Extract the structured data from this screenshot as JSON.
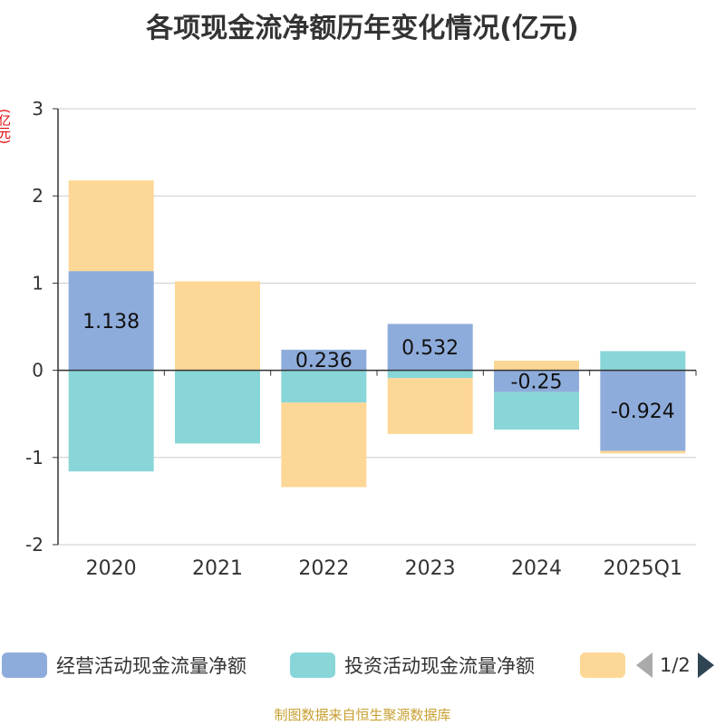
{
  "title": "各项现金流净额历年变化情况(亿元)",
  "unit_label": "(亿元)",
  "source": "制图数据来自恒生聚源数据库",
  "legend": {
    "items": [
      {
        "label": "经营活动现金流量净额",
        "color": "#8eacdb"
      },
      {
        "label": "投资活动现金流量净额",
        "color": "#88d6d8"
      },
      {
        "label": "",
        "color": "#fdd796"
      }
    ],
    "page_text": "1/2"
  },
  "chart_data": {
    "type": "bar",
    "stacked": true,
    "categories": [
      "2020",
      "2021",
      "2022",
      "2023",
      "2024",
      "2025Q1"
    ],
    "ylim": [
      -2,
      3
    ],
    "yticks": [
      -2,
      -1,
      0,
      1,
      2,
      3
    ],
    "grid": true,
    "series": [
      {
        "name": "经营活动现金流量净额",
        "color": "#8eacdb",
        "values": [
          1.138,
          0.0,
          0.236,
          0.532,
          -0.25,
          -0.924
        ],
        "labels": [
          "1.138",
          "",
          "0.236",
          "0.532",
          "-0.25",
          "-0.924"
        ]
      },
      {
        "name": "投资活动现金流量净额",
        "color": "#88d6d8",
        "values": [
          -1.16,
          -0.84,
          -0.37,
          -0.09,
          -0.43,
          0.22
        ],
        "labels": []
      },
      {
        "name": "",
        "color": "#fdd796",
        "values": [
          1.04,
          1.02,
          -0.97,
          -0.64,
          0.11,
          -0.03
        ],
        "labels": []
      }
    ]
  }
}
